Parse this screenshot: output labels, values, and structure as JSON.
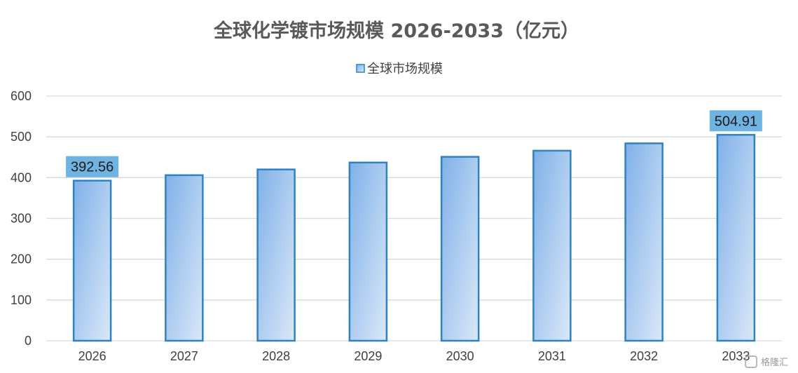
{
  "chart_data": {
    "type": "bar",
    "title": "全球化学镀市场规模 2026-2033（亿元）",
    "xlabel": "",
    "ylabel": "",
    "categories": [
      "2026",
      "2027",
      "2028",
      "2029",
      "2030",
      "2031",
      "2032",
      "2033"
    ],
    "series": [
      {
        "name": "全球市场规模",
        "values": [
          392.56,
          406,
          420,
          437,
          451,
          466,
          484,
          504.91
        ]
      }
    ],
    "data_labels": [
      {
        "index": 0,
        "text": "392.56"
      },
      {
        "index": 7,
        "text": "504.91"
      }
    ],
    "ylim": [
      0,
      600
    ],
    "yticks": [
      "0",
      "100",
      "200",
      "300",
      "400",
      "500",
      "600"
    ],
    "grid": true,
    "legend_position": "top",
    "colors": {
      "bar_fill_start": "#7fb1e8",
      "bar_fill_end": "#dbe8f8",
      "bar_border": "#2f82c1",
      "label_bg": "#6fb3e3",
      "grid": "#d9d9d9",
      "title": "#595959"
    }
  },
  "watermark": "格隆汇"
}
